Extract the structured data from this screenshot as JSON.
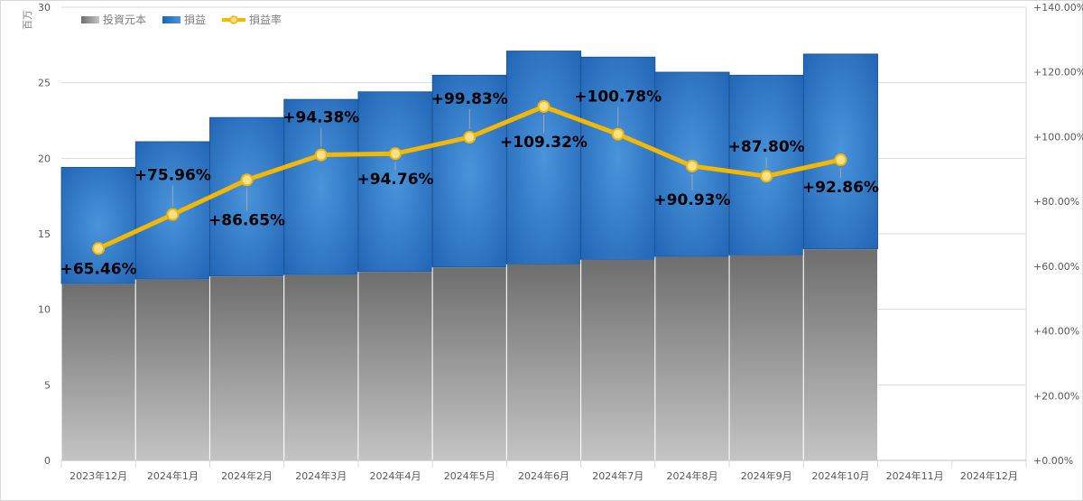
{
  "chart_data": {
    "type": "bar",
    "categories": [
      "2023年12月",
      "2024年1月",
      "2024年2月",
      "2024年3月",
      "2024年4月",
      "2024年5月",
      "2024年6月",
      "2024年7月",
      "2024年8月",
      "2024年9月",
      "2024年10月",
      "2024年11月",
      "2024年12月"
    ],
    "series": [
      {
        "name": "投資元本",
        "kind": "stacked-bar",
        "axis": "left",
        "values": [
          11.7,
          12.0,
          12.2,
          12.3,
          12.5,
          12.8,
          13.0,
          13.3,
          13.5,
          13.6,
          14.0,
          null,
          null
        ],
        "color": "#8c8c8c"
      },
      {
        "name": "損益",
        "kind": "stacked-bar",
        "axis": "left",
        "values": [
          7.7,
          9.1,
          10.5,
          11.6,
          11.9,
          12.7,
          14.1,
          13.4,
          12.2,
          11.9,
          12.9,
          null,
          null
        ],
        "color": "#2e75c8"
      },
      {
        "name": "損益率",
        "kind": "line",
        "axis": "right",
        "values": [
          65.46,
          75.96,
          86.65,
          94.38,
          94.76,
          99.83,
          109.32,
          100.78,
          90.93,
          87.8,
          92.86,
          null,
          null
        ],
        "color": "#f5b800"
      }
    ],
    "data_labels": [
      "+65.46%",
      "+75.96%",
      "+86.65%",
      "+94.38%",
      "+94.76%",
      "+99.83%",
      "+109.32%",
      "+100.78%",
      "+90.93%",
      "+87.80%",
      "+92.86%"
    ],
    "ylabel": "百万",
    "ylim": [
      0,
      30
    ],
    "yticks": [
      "0",
      "5",
      "10",
      "15",
      "20",
      "25",
      "30"
    ],
    "y2lim": [
      0,
      140
    ],
    "y2ticks": [
      "+0.00%",
      "+20.00%",
      "+40.00%",
      "+60.00%",
      "+80.00%",
      "+100.00%",
      "+120.00%",
      "+140.00%"
    ],
    "grid": true,
    "legend_position": "top-left"
  }
}
